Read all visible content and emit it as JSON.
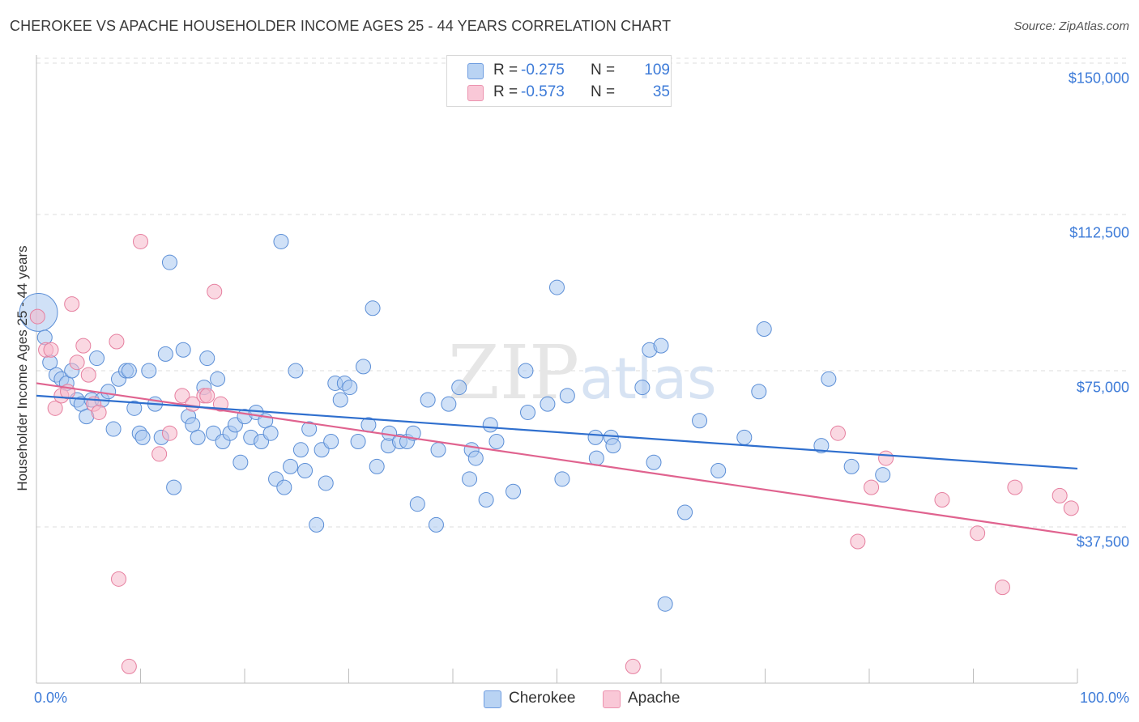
{
  "title": "CHEROKEE VS APACHE HOUSEHOLDER INCOME AGES 25 - 44 YEARS CORRELATION CHART",
  "source": "Source: ZipAtlas.com",
  "watermark": {
    "zip": "ZIP",
    "atlas": "atlas"
  },
  "stats": [
    {
      "r_label": "R =",
      "r_value": "-0.275",
      "n_label": "N =",
      "n_value": "109"
    },
    {
      "r_label": "R =",
      "r_value": "-0.573",
      "n_label": "N =",
      "n_value": "35"
    }
  ],
  "legend": {
    "cherokee": "Cherokee",
    "apache": "Apache"
  },
  "colors": {
    "cherokee_fill": "#a9c8f0",
    "cherokee_stroke": "#5b8ed6",
    "cherokee_line": "#2f6fce",
    "apache_fill": "#f6b8cb",
    "apache_stroke": "#e67f9f",
    "apache_line": "#e0638f",
    "tick_label": "#3d7bd8",
    "grid": "#dcdcdc"
  },
  "chart_data": {
    "type": "scatter",
    "title": "CHEROKEE VS APACHE HOUSEHOLDER INCOME AGES 25 - 44 YEARS CORRELATION CHART",
    "xlabel": "",
    "ylabel": "Householder Income Ages 25 - 44 years",
    "xlim": [
      0,
      100
    ],
    "ylim": [
      0,
      152000
    ],
    "x_tick_labels": [
      "0.0%",
      "100.0%"
    ],
    "y_ticks": [
      37500,
      75000,
      112500,
      150000
    ],
    "y_tick_labels": [
      "$37,500",
      "$75,000",
      "$112,500",
      "$150,000"
    ],
    "grid": true,
    "legend_position": "bottom-center",
    "series": [
      {
        "name": "Cherokee",
        "trend": {
          "x": [
            0,
            100
          ],
          "y": [
            69000,
            51500
          ]
        },
        "points": [
          [
            0.2,
            89000,
            2.6
          ],
          [
            0.8,
            83000,
            1
          ],
          [
            1.3,
            77000,
            1
          ],
          [
            1.9,
            74000,
            1
          ],
          [
            2.4,
            73000,
            1
          ],
          [
            2.9,
            72000,
            1
          ],
          [
            3.4,
            75000,
            1
          ],
          [
            3.9,
            68000,
            1
          ],
          [
            4.3,
            67000,
            1
          ],
          [
            4.8,
            64000,
            1
          ],
          [
            5.3,
            68000,
            1
          ],
          [
            5.8,
            78000,
            1
          ],
          [
            6.3,
            68000,
            1
          ],
          [
            6.9,
            70000,
            1
          ],
          [
            7.4,
            61000,
            1
          ],
          [
            7.9,
            73000,
            1
          ],
          [
            8.6,
            75000,
            1
          ],
          [
            8.9,
            75000,
            1
          ],
          [
            9.4,
            66000,
            1
          ],
          [
            9.9,
            60000,
            1
          ],
          [
            10.2,
            59000,
            1
          ],
          [
            10.8,
            75000,
            1
          ],
          [
            11.4,
            67000,
            1
          ],
          [
            12.0,
            59000,
            1
          ],
          [
            12.4,
            79000,
            1
          ],
          [
            12.8,
            101000,
            1
          ],
          [
            13.2,
            47000,
            1
          ],
          [
            14.1,
            80000,
            1
          ],
          [
            14.6,
            64000,
            1
          ],
          [
            15.0,
            62000,
            1
          ],
          [
            15.5,
            59000,
            1
          ],
          [
            16.1,
            71000,
            1
          ],
          [
            16.4,
            78000,
            1
          ],
          [
            17.0,
            60000,
            1
          ],
          [
            17.4,
            73000,
            1
          ],
          [
            17.9,
            58000,
            1
          ],
          [
            18.6,
            60000,
            1
          ],
          [
            19.1,
            62000,
            1
          ],
          [
            19.6,
            53000,
            1
          ],
          [
            20.0,
            64000,
            1
          ],
          [
            20.6,
            59000,
            1
          ],
          [
            21.1,
            65000,
            1
          ],
          [
            21.6,
            58000,
            1
          ],
          [
            22.0,
            63000,
            1
          ],
          [
            22.5,
            60000,
            1
          ],
          [
            23.0,
            49000,
            1
          ],
          [
            23.5,
            106000,
            1
          ],
          [
            23.8,
            47000,
            1
          ],
          [
            24.4,
            52000,
            1
          ],
          [
            24.9,
            75000,
            1
          ],
          [
            25.4,
            56000,
            1
          ],
          [
            25.8,
            51000,
            1
          ],
          [
            26.2,
            61000,
            1
          ],
          [
            26.9,
            38000,
            1
          ],
          [
            27.4,
            56000,
            1
          ],
          [
            27.8,
            48000,
            1
          ],
          [
            28.3,
            58000,
            1
          ],
          [
            28.7,
            72000,
            1
          ],
          [
            29.2,
            68000,
            1
          ],
          [
            29.6,
            72000,
            1
          ],
          [
            30.1,
            71000,
            1
          ],
          [
            30.9,
            58000,
            1
          ],
          [
            31.4,
            76000,
            1
          ],
          [
            31.9,
            62000,
            1
          ],
          [
            32.3,
            90000,
            1
          ],
          [
            32.7,
            52000,
            1
          ],
          [
            33.8,
            57000,
            1
          ],
          [
            33.9,
            60000,
            1
          ],
          [
            34.9,
            58000,
            1
          ],
          [
            35.6,
            58000,
            1
          ],
          [
            36.2,
            60000,
            1
          ],
          [
            36.6,
            43000,
            1
          ],
          [
            38.4,
            38000,
            1
          ],
          [
            38.6,
            56000,
            1
          ],
          [
            37.6,
            68000,
            1
          ],
          [
            39.6,
            67000,
            1
          ],
          [
            40.6,
            71000,
            1
          ],
          [
            41.6,
            49000,
            1
          ],
          [
            41.8,
            56000,
            1
          ],
          [
            42.2,
            54000,
            1
          ],
          [
            43.2,
            44000,
            1
          ],
          [
            43.6,
            62000,
            1
          ],
          [
            44.2,
            58000,
            1
          ],
          [
            45.8,
            46000,
            1
          ],
          [
            47.0,
            75000,
            1
          ],
          [
            47.2,
            65000,
            1
          ],
          [
            49.1,
            67000,
            1
          ],
          [
            50.0,
            95000,
            1
          ],
          [
            50.5,
            49000,
            1
          ],
          [
            51.0,
            69000,
            1
          ],
          [
            53.8,
            54000,
            1
          ],
          [
            53.7,
            59000,
            1
          ],
          [
            55.2,
            59000,
            1
          ],
          [
            55.4,
            57000,
            1
          ],
          [
            58.2,
            71000,
            1
          ],
          [
            58.9,
            80000,
            1
          ],
          [
            59.3,
            53000,
            1
          ],
          [
            60.0,
            81000,
            1
          ],
          [
            60.4,
            19000,
            1
          ],
          [
            62.3,
            41000,
            1
          ],
          [
            63.7,
            63000,
            1
          ],
          [
            65.5,
            51000,
            1
          ],
          [
            68.0,
            59000,
            1
          ],
          [
            69.4,
            70000,
            1
          ],
          [
            69.9,
            85000,
            1
          ],
          [
            75.4,
            57000,
            1
          ],
          [
            76.1,
            73000,
            1
          ],
          [
            78.3,
            52000,
            1
          ],
          [
            81.3,
            50000,
            1
          ]
        ]
      },
      {
        "name": "Apache",
        "trend": {
          "x": [
            0,
            100
          ],
          "y": [
            72000,
            35500
          ]
        },
        "points": [
          [
            0.1,
            88000,
            1
          ],
          [
            0.9,
            80000,
            1
          ],
          [
            1.4,
            80000,
            1
          ],
          [
            1.8,
            66000,
            1
          ],
          [
            2.4,
            69000,
            1
          ],
          [
            3.0,
            70000,
            1
          ],
          [
            3.4,
            91000,
            1
          ],
          [
            3.9,
            77000,
            1
          ],
          [
            4.5,
            81000,
            1
          ],
          [
            5.0,
            74000,
            1
          ],
          [
            5.5,
            67000,
            1
          ],
          [
            6.0,
            65000,
            1
          ],
          [
            7.7,
            82000,
            1
          ],
          [
            7.9,
            25000,
            1
          ],
          [
            8.9,
            4000,
            1
          ],
          [
            10.0,
            106000,
            1
          ],
          [
            11.8,
            55000,
            1
          ],
          [
            12.8,
            60000,
            1
          ],
          [
            14.0,
            69000,
            1
          ],
          [
            15.0,
            67000,
            1
          ],
          [
            16.1,
            69000,
            1
          ],
          [
            16.4,
            69000,
            1
          ],
          [
            17.1,
            94000,
            1
          ],
          [
            17.7,
            67000,
            1
          ],
          [
            57.3,
            4000,
            1
          ],
          [
            77.0,
            60000,
            1
          ],
          [
            78.9,
            34000,
            1
          ],
          [
            80.2,
            47000,
            1
          ],
          [
            81.6,
            54000,
            1
          ],
          [
            87.0,
            44000,
            1
          ],
          [
            90.4,
            36000,
            1
          ],
          [
            92.8,
            23000,
            1
          ],
          [
            94.0,
            47000,
            1
          ],
          [
            98.3,
            45000,
            1
          ],
          [
            99.4,
            42000,
            1
          ]
        ]
      }
    ]
  }
}
